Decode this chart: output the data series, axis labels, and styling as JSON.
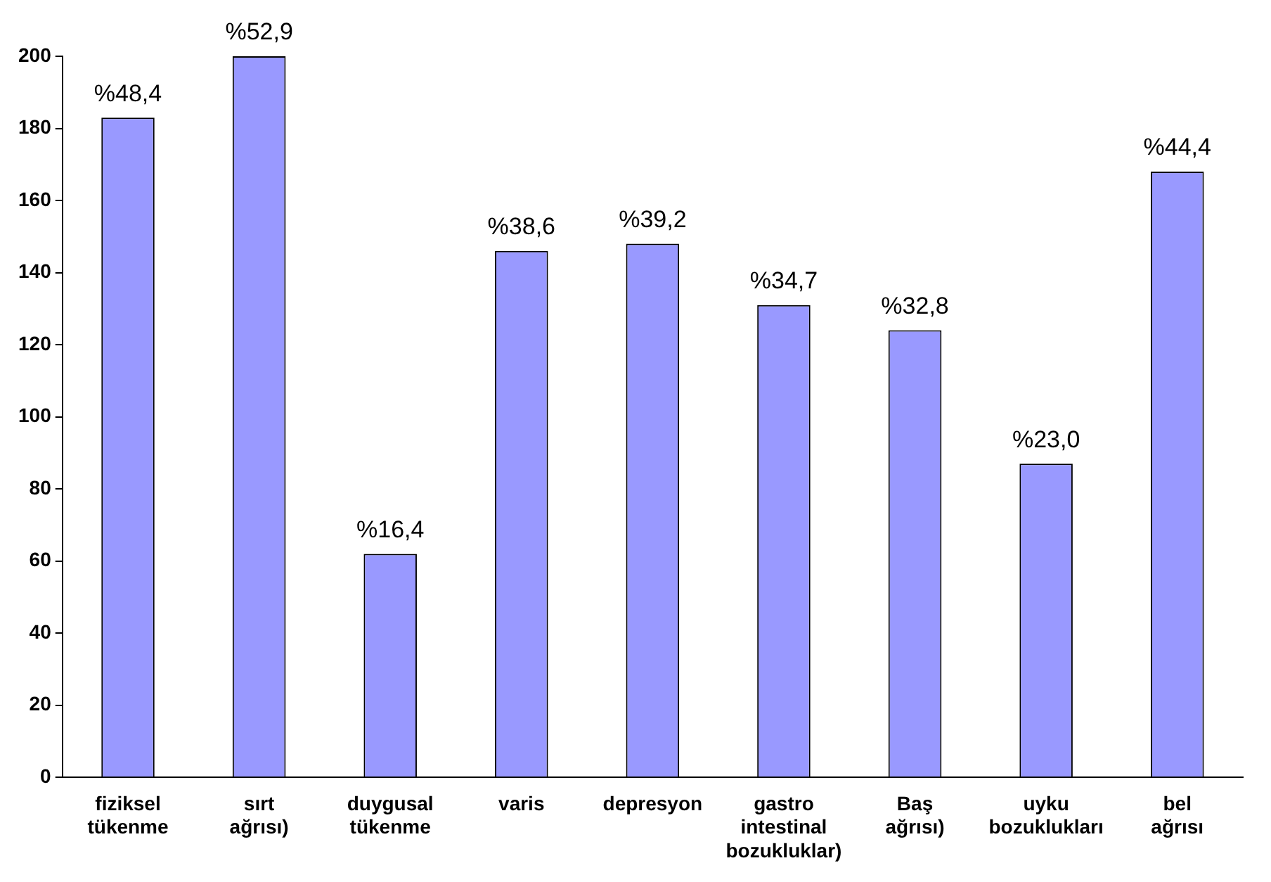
{
  "chart_data": {
    "type": "bar",
    "categories": [
      "fiziksel tükenme",
      "sırt ağrısı)",
      "duygusal tükenme",
      "varis",
      "depresyon",
      "gastro intestinal bozukluklar)",
      "Baş ağrısı)",
      "uyku bozuklukları",
      "bel ağrısı"
    ],
    "values": [
      183,
      200,
      62,
      146,
      148,
      131,
      124,
      87,
      168
    ],
    "annotations": [
      {
        "text": "%48,4",
        "x": "fiziksel tükenme",
        "y": 183
      },
      {
        "text": "%52,9",
        "x": "sırt ağrısı)",
        "y": 200
      },
      {
        "text": "%16,4",
        "x": "duygusal tükenme",
        "y": 62
      },
      {
        "text": "%38,6",
        "x": "varis",
        "y": 146
      },
      {
        "text": "%39,2",
        "x": "depresyon",
        "y": 148
      },
      {
        "text": "%34,7",
        "x": "gastro intestinal bozukluklar)",
        "y": 131
      },
      {
        "text": "%32,8",
        "x": "Baş ağrısı)",
        "y": 124
      },
      {
        "text": "%23,0",
        "x": "uyku bozuklukları",
        "y": 87
      },
      {
        "text": "%44,4",
        "x": "bel ağrısı",
        "y": 168
      }
    ],
    "color": "#9999ff",
    "ylim": [
      0,
      200
    ],
    "yticks": [
      0,
      20,
      40,
      60,
      80,
      100,
      120,
      140,
      160,
      180,
      200
    ],
    "grid": false
  }
}
